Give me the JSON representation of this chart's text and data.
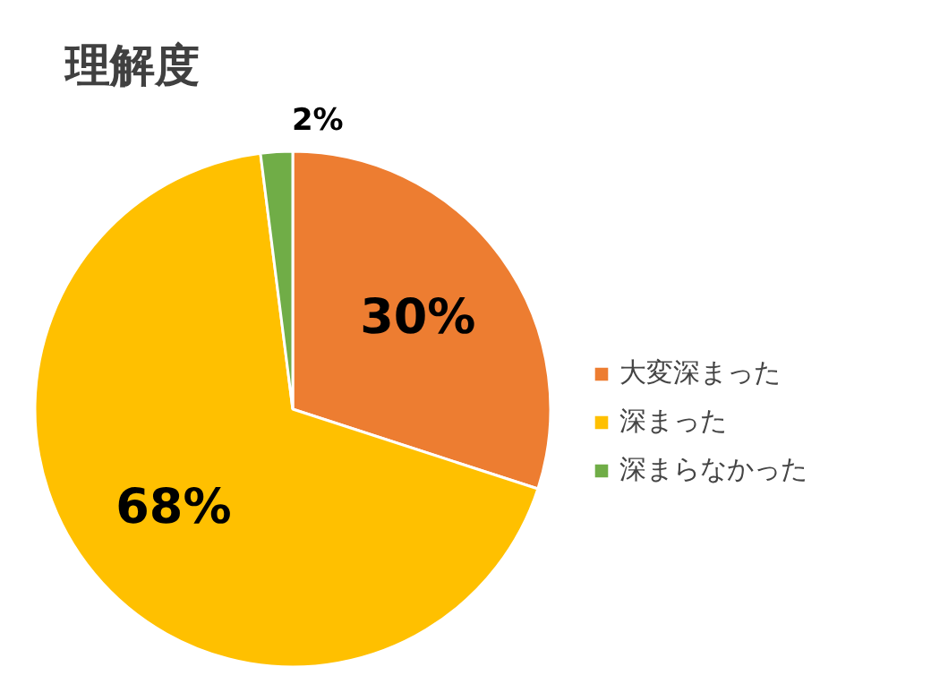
{
  "chart_data": {
    "type": "pie",
    "title": "理解度",
    "categories": [
      "大変深まった",
      "深まった",
      "深まらなかった"
    ],
    "values": [
      30,
      68,
      2
    ],
    "colors": [
      "#ed7d31",
      "#ffc000",
      "#70ad47"
    ],
    "value_labels": [
      "30%",
      "68%",
      "2%"
    ],
    "legend": "right"
  }
}
